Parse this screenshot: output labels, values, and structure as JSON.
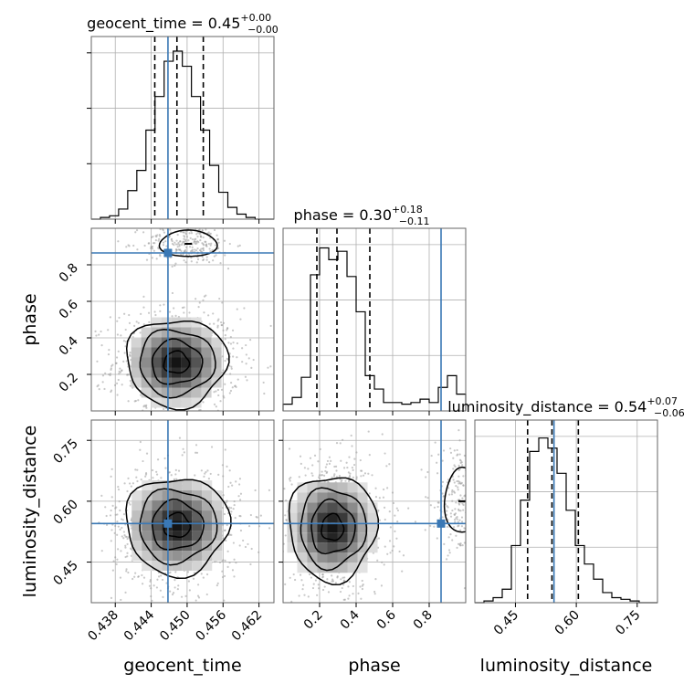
{
  "chart_data": {
    "type": "corner",
    "parameters": [
      {
        "name": "geocent_time",
        "xlabel": "geocent_time",
        "range": [
          0.434,
          0.4645
        ],
        "ticks": [
          0.438,
          0.444,
          0.45,
          0.456,
          0.462
        ],
        "tick_labels": [
          "0.438",
          "0.444",
          "0.450",
          "0.456",
          "0.462"
        ],
        "truth": 0.4468,
        "quantiles": [
          0.4446,
          0.4483,
          0.4527
        ],
        "title": {
          "base": "geocent_time = 0.45",
          "plus": "+0.00",
          "minus": "−0.00"
        },
        "hist": {
          "edges": [
            0.434,
            0.43552,
            0.43704,
            0.43856,
            0.44008,
            0.4416,
            0.44312,
            0.44464,
            0.44616,
            0.44768,
            0.4492,
            0.45072,
            0.45224,
            0.45376,
            0.45528,
            0.4568,
            0.45832,
            0.45984,
            0.46136,
            0.46288,
            0.4645
          ],
          "counts": [
            0.0,
            0.01,
            0.02,
            0.06,
            0.17,
            0.29,
            0.53,
            0.73,
            0.94,
            1.0,
            0.91,
            0.73,
            0.53,
            0.32,
            0.16,
            0.07,
            0.03,
            0.01,
            0.0,
            0.0
          ]
        }
      },
      {
        "name": "phase",
        "xlabel": "phase",
        "ylabel": "phase",
        "range": [
          0.0,
          1.0
        ],
        "ticks": [
          0.2,
          0.4,
          0.6,
          0.8
        ],
        "tick_labels": [
          "0.2",
          "0.4",
          "0.6",
          "0.8"
        ],
        "truth": 0.865,
        "quantiles": [
          0.185,
          0.295,
          0.475
        ],
        "title": {
          "base": "phase = 0.30",
          "plus": "+0.18",
          "minus": "−0.11"
        },
        "hist": {
          "edges": [
            0.0,
            0.05,
            0.1,
            0.15,
            0.2,
            0.25,
            0.3,
            0.35,
            0.4,
            0.45,
            0.5,
            0.55,
            0.6,
            0.65,
            0.7,
            0.75,
            0.8,
            0.85,
            0.9,
            0.95,
            1.0
          ],
          "counts": [
            0.04,
            0.08,
            0.2,
            0.81,
            0.97,
            0.9,
            0.95,
            0.8,
            0.59,
            0.21,
            0.13,
            0.05,
            0.05,
            0.04,
            0.05,
            0.07,
            0.05,
            0.14,
            0.21,
            0.1
          ]
        }
      },
      {
        "name": "luminosity_distance",
        "xlabel": "luminosity_distance",
        "ylabel": "luminosity_distance",
        "range": [
          0.35,
          0.8
        ],
        "ticks": [
          0.45,
          0.6,
          0.75
        ],
        "tick_labels": [
          "0.45",
          "0.60",
          "0.75"
        ],
        "y_tick_labels": [
          "0.45",
          "0.60",
          "0.75"
        ],
        "truth": 0.545,
        "quantiles": [
          0.48,
          0.54,
          0.605
        ],
        "title": {
          "base": "luminosity_distance = 0.54",
          "plus": "+0.07",
          "minus": "−0.06"
        },
        "hist": {
          "edges": [
            0.35,
            0.3725,
            0.395,
            0.4175,
            0.44,
            0.4625,
            0.485,
            0.5075,
            0.53,
            0.5525,
            0.575,
            0.5975,
            0.62,
            0.6425,
            0.665,
            0.6875,
            0.71,
            0.7325,
            0.755,
            0.7775,
            0.8
          ],
          "counts": [
            0.0,
            0.01,
            0.03,
            0.08,
            0.34,
            0.61,
            0.9,
            0.98,
            0.92,
            0.77,
            0.55,
            0.34,
            0.23,
            0.14,
            0.06,
            0.03,
            0.02,
            0.01,
            0.0,
            0.0
          ]
        }
      }
    ],
    "pairs": [
      {
        "x": "geocent_time",
        "y": "phase",
        "modes": [
          {
            "center": [
              0.4482,
              0.265
            ],
            "spread": [
              0.0042,
              0.12
            ]
          },
          {
            "center": [
              0.4502,
              0.915
            ],
            "spread": [
              0.003,
              0.045
            ]
          }
        ]
      },
      {
        "x": "geocent_time",
        "y": "luminosity_distance",
        "modes": [
          {
            "center": [
              0.4483,
              0.54
            ],
            "spread": [
              0.0043,
              0.06
            ]
          }
        ]
      },
      {
        "x": "phase",
        "y": "luminosity_distance",
        "modes": [
          {
            "center": [
              0.27,
              0.535
            ],
            "spread": [
              0.12,
              0.065
            ]
          },
          {
            "center": [
              0.98,
              0.6
            ],
            "spread": [
              0.06,
              0.05
            ]
          }
        ]
      }
    ],
    "style": {
      "truth_color": "#3a78b5",
      "line_color": "#000000",
      "grid_color": "#b0b0b0",
      "scatter_color": "#9a9a9a",
      "grid": true
    }
  }
}
